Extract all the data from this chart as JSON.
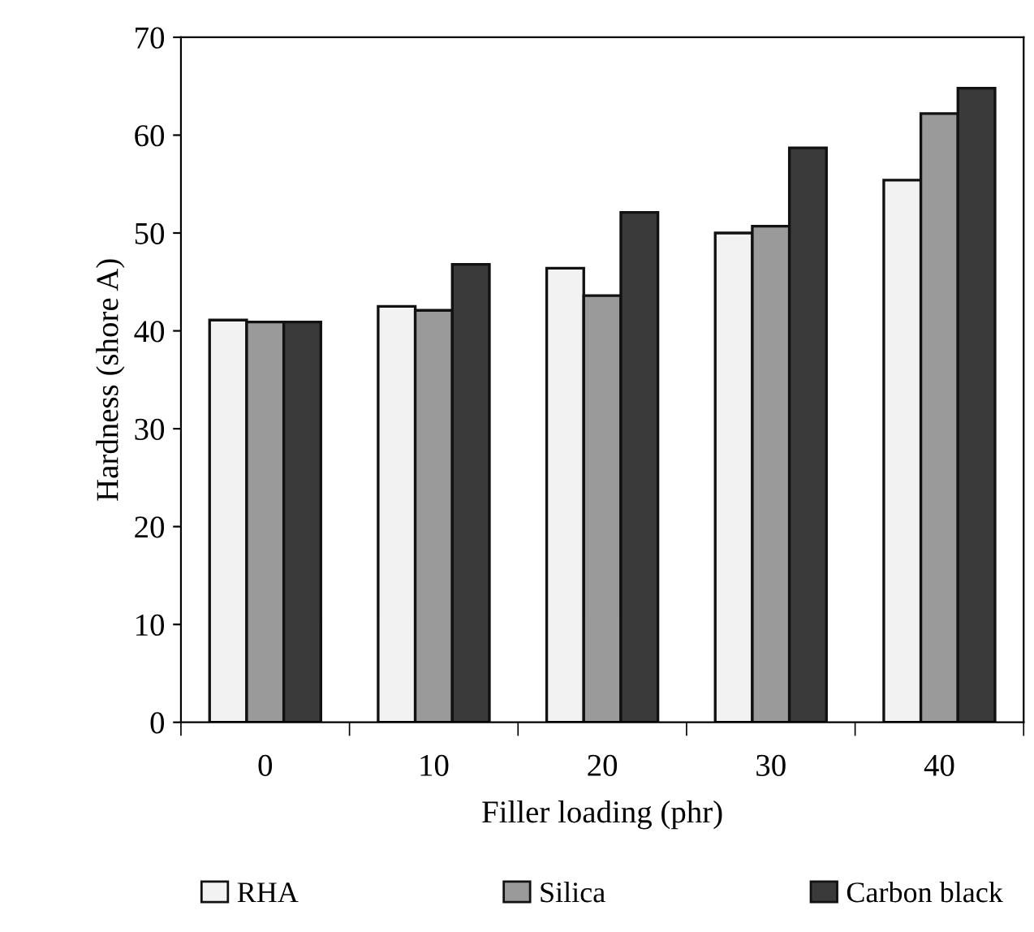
{
  "chart_data": {
    "type": "bar",
    "xlabel": "Filler loading (phr)",
    "ylabel": "Hardness (shore A)",
    "categories": [
      "0",
      "10",
      "20",
      "30",
      "40"
    ],
    "series": [
      {
        "name": "RHA",
        "color": "#f2f2f2",
        "values": [
          41.1,
          42.5,
          46.4,
          50.0,
          55.4
        ]
      },
      {
        "name": "Silica",
        "color": "#9a9a9a",
        "values": [
          40.9,
          42.1,
          43.6,
          50.7,
          62.2
        ]
      },
      {
        "name": "Carbon black",
        "color": "#3a3a3a",
        "values": [
          40.9,
          46.8,
          52.1,
          58.7,
          64.8
        ]
      }
    ],
    "ylim": [
      0,
      70
    ],
    "yticks": [
      0,
      10,
      20,
      30,
      40,
      50,
      60,
      70
    ],
    "grid": false,
    "legend": "bottom"
  }
}
